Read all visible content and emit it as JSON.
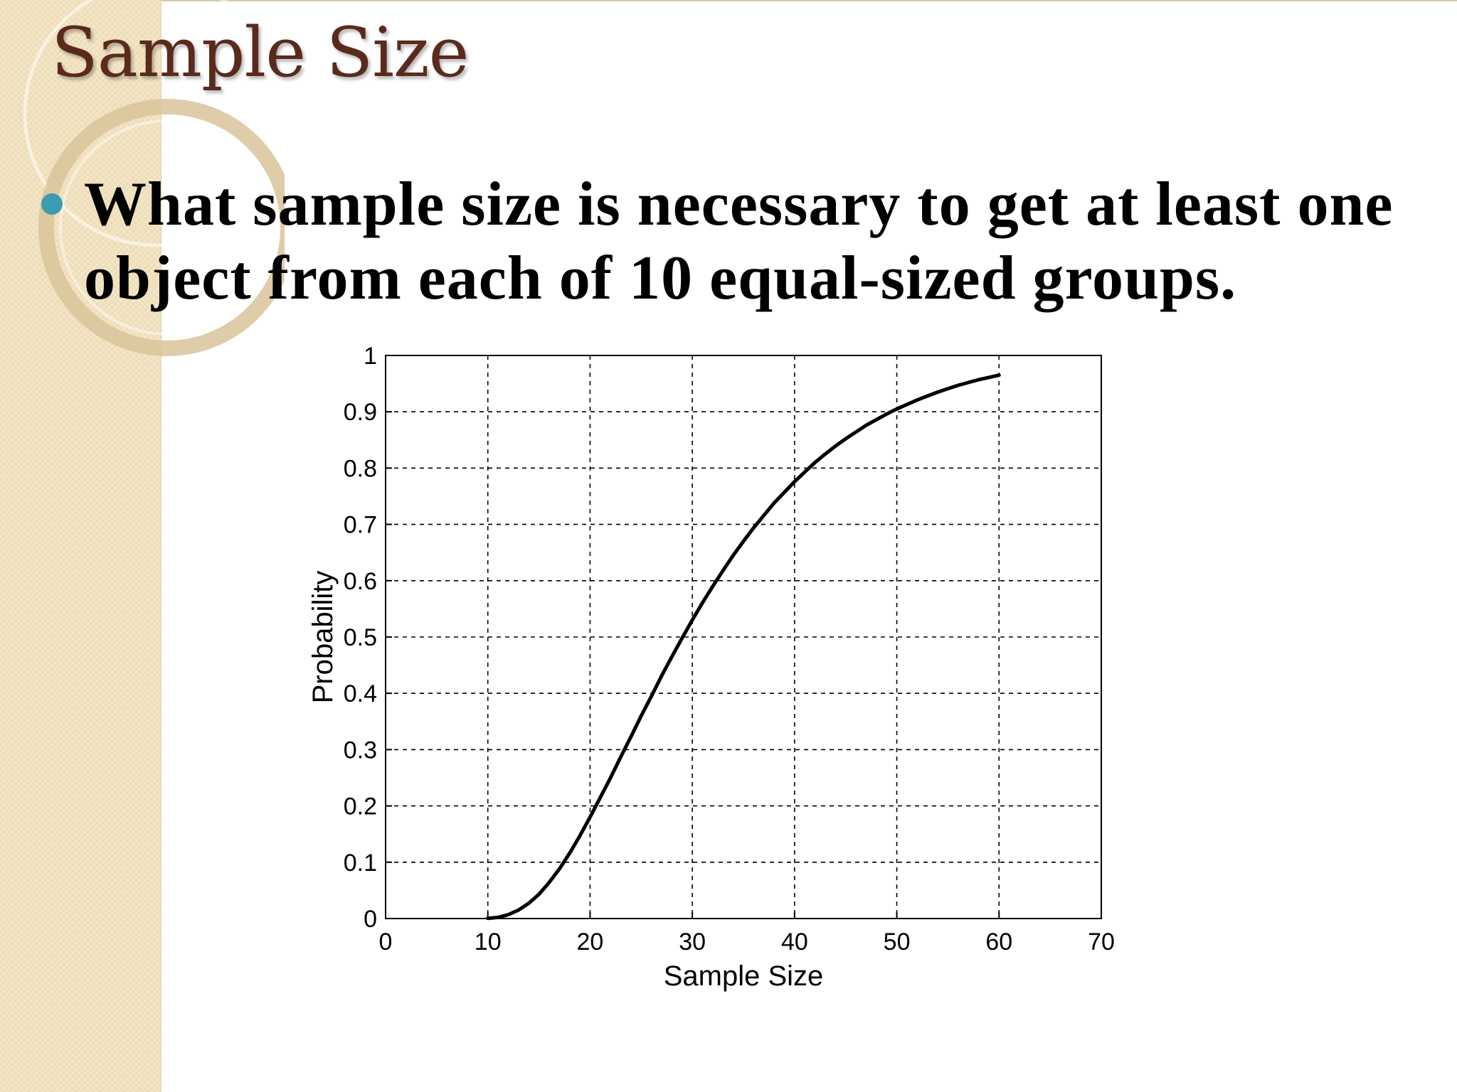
{
  "slide": {
    "title": "Sample Size",
    "bullet": "What sample size is necessary to get at least one object from each of 10 equal-sized groups."
  },
  "colors": {
    "title": "#5a2a1d",
    "bullet_dot": "#3d9bb0",
    "side_panel": "#f1e2bf"
  },
  "chart_data": {
    "type": "line",
    "title": "",
    "xlabel": "Sample Size",
    "ylabel": "Probability",
    "xlim": [
      0,
      70
    ],
    "ylim": [
      0,
      1
    ],
    "xticks": [
      0,
      10,
      20,
      30,
      40,
      50,
      60,
      70
    ],
    "yticks": [
      0,
      0.1,
      0.2,
      0.3,
      0.4,
      0.5,
      0.6,
      0.7,
      0.8,
      0.9,
      1
    ],
    "ytick_labels": [
      "0",
      "0.1",
      "0.2",
      "0.3",
      "0.4",
      "0.5",
      "0.6",
      "0.7",
      "0.8",
      "0.9",
      "1"
    ],
    "grid": true,
    "grid_style": "dashed",
    "series": [
      {
        "color": "#000000",
        "x": [
          10,
          11,
          12,
          13,
          14,
          15,
          16,
          17,
          18,
          19,
          20,
          21,
          22,
          23,
          24,
          25,
          26,
          27,
          28,
          29,
          30,
          31,
          32,
          33,
          34,
          35,
          36,
          37,
          38,
          39,
          40,
          41,
          42,
          43,
          44,
          45,
          46,
          47,
          48,
          49,
          50,
          51,
          52,
          53,
          54,
          55,
          56,
          57,
          58,
          59,
          60
        ],
        "y": [
          0.0004,
          0.002,
          0.007,
          0.015,
          0.027,
          0.043,
          0.064,
          0.088,
          0.116,
          0.147,
          0.18,
          0.215,
          0.25,
          0.287,
          0.323,
          0.36,
          0.395,
          0.431,
          0.465,
          0.498,
          0.53,
          0.561,
          0.59,
          0.618,
          0.645,
          0.67,
          0.694,
          0.716,
          0.738,
          0.757,
          0.776,
          0.793,
          0.81,
          0.825,
          0.839,
          0.852,
          0.864,
          0.876,
          0.886,
          0.896,
          0.905,
          0.913,
          0.921,
          0.928,
          0.935,
          0.941,
          0.947,
          0.952,
          0.957,
          0.961,
          0.965
        ]
      }
    ]
  }
}
